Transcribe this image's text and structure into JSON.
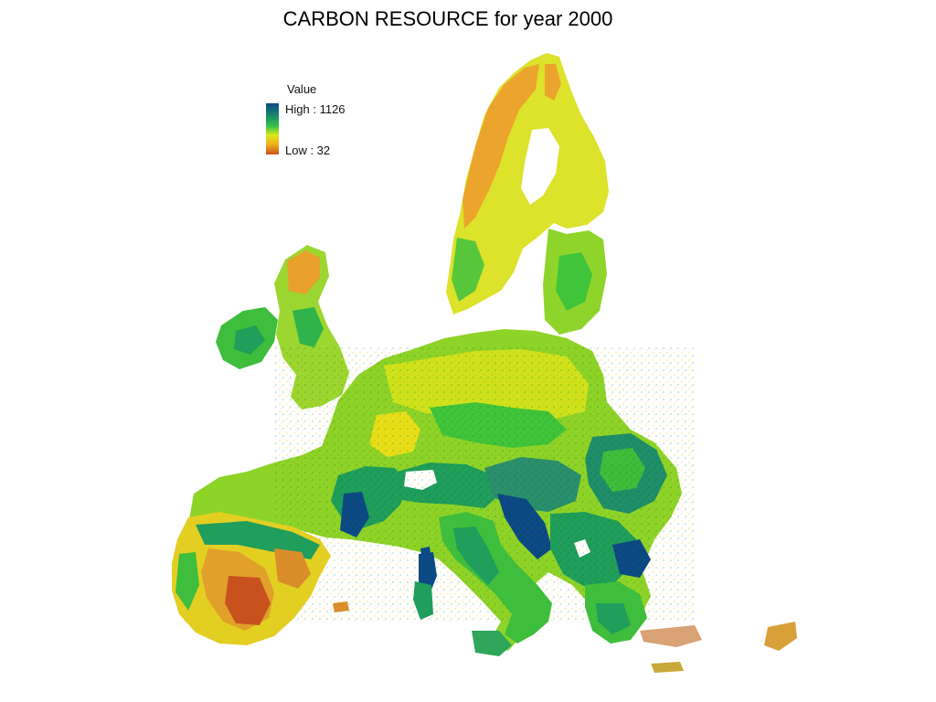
{
  "title": "CARBON RESOURCE for year 2000",
  "legend": {
    "heading": "Value",
    "high_label": "High : 1126",
    "low_label": "Low : 32",
    "high_value": 1126,
    "low_value": 32,
    "ramp_colors": [
      "#0c4a86",
      "#1a8a6a",
      "#36c247",
      "#d8ea18",
      "#f0b21c",
      "#c8521e"
    ]
  },
  "map": {
    "region": "Europe",
    "palette": {
      "very_high": "#0c4a86",
      "high": "#1f9e5c",
      "mid_high": "#3fc43a",
      "mid": "#8fd61e",
      "mid_low": "#e6e618",
      "low": "#f0a21c",
      "very_low": "#c8521e"
    }
  }
}
